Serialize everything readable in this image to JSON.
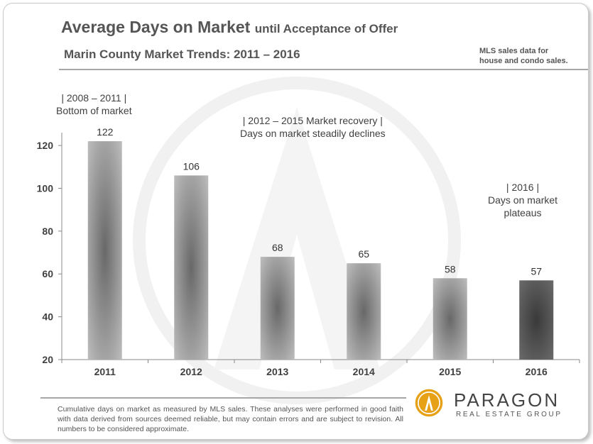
{
  "header": {
    "title_main": "Average Days on Market",
    "title_suffix": "until Acceptance of Offer",
    "subtitle": "Marin County Market Trends: 2011 – 2016",
    "note_line1": "MLS sales data for",
    "note_line2": "house and condo sales."
  },
  "annotations": {
    "a1_line1": "| 2008  – 2011  |",
    "a1_line2": "Bottom  of market",
    "a2_line1": "|       2012 – 2015  Market recovery      |",
    "a2_line2": "Days on market  steadily  declines",
    "a3_line1": "|   2016   |",
    "a3_line2": "Days on market",
    "a3_line3": "plateaus"
  },
  "chart_data": {
    "type": "bar",
    "categories": [
      "2011",
      "2012",
      "2013",
      "2014",
      "2015",
      "2016"
    ],
    "values": [
      122,
      106,
      68,
      65,
      58,
      57
    ],
    "data_labels": [
      "122",
      "106",
      "68",
      "65",
      "58",
      "57"
    ],
    "y_ticks": [
      "20",
      "40",
      "60",
      "80",
      "100",
      "120"
    ],
    "ylim": [
      20,
      126
    ],
    "grid": false,
    "bar_colors": {
      "normal_edge": "#bdbdbd",
      "normal_center": "#686868",
      "last_edge": "#6a6a6a",
      "last_center": "#3a3a3a"
    }
  },
  "footer": {
    "disclaimer": "Cumulative days on market as measured by MLS sales. These analyses were performed in good faith with data derived from sources deemed reliable, but may contain errors and are subject to revision.  All numbers to be considered  approximate.",
    "logo_name": "PARAGON",
    "logo_sub": "REAL ESTATE GROUP"
  },
  "colors": {
    "text": "#555555",
    "axis": "#888888",
    "logo_gold": "#e6a117",
    "watermark": "#f2f2f2"
  }
}
